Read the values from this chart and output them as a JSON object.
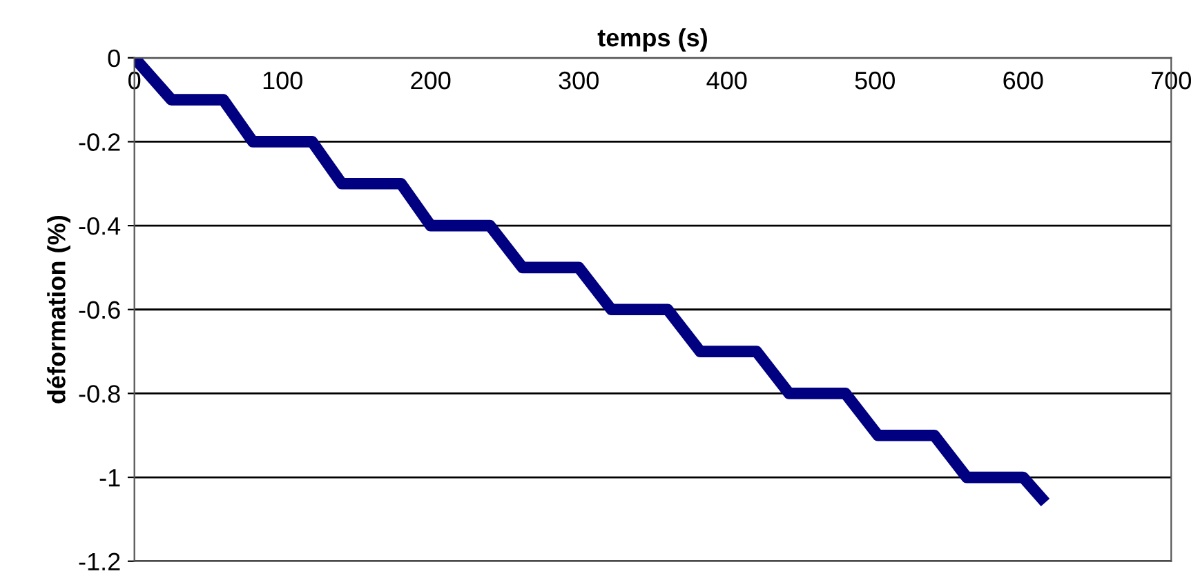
{
  "chart_data": {
    "type": "line",
    "xlabel": "temps (s)",
    "ylabel": "déformation (%)",
    "xlim": [
      0,
      700
    ],
    "xticks": [
      0,
      100,
      200,
      300,
      400,
      500,
      600,
      700
    ],
    "ylim": [
      -1.2,
      0
    ],
    "yticks": [
      0,
      -0.2,
      -0.4,
      -0.6,
      -0.8,
      -1,
      -1.2
    ],
    "grid": "y",
    "legend": false,
    "marker": "none",
    "line_style": "solid",
    "series": [
      {
        "color": "#000080",
        "x": [
          0,
          25,
          60,
          80,
          120,
          140,
          180,
          200,
          240,
          262,
          300,
          322,
          360,
          382,
          420,
          442,
          480,
          502,
          540,
          562,
          600,
          615
        ],
        "values": [
          0,
          -0.1,
          -0.1,
          -0.2,
          -0.2,
          -0.3,
          -0.3,
          -0.4,
          -0.4,
          -0.5,
          -0.5,
          -0.6,
          -0.6,
          -0.7,
          -0.7,
          -0.8,
          -0.8,
          -0.9,
          -0.9,
          -1.0,
          -1.0,
          -1.06
        ]
      }
    ]
  }
}
